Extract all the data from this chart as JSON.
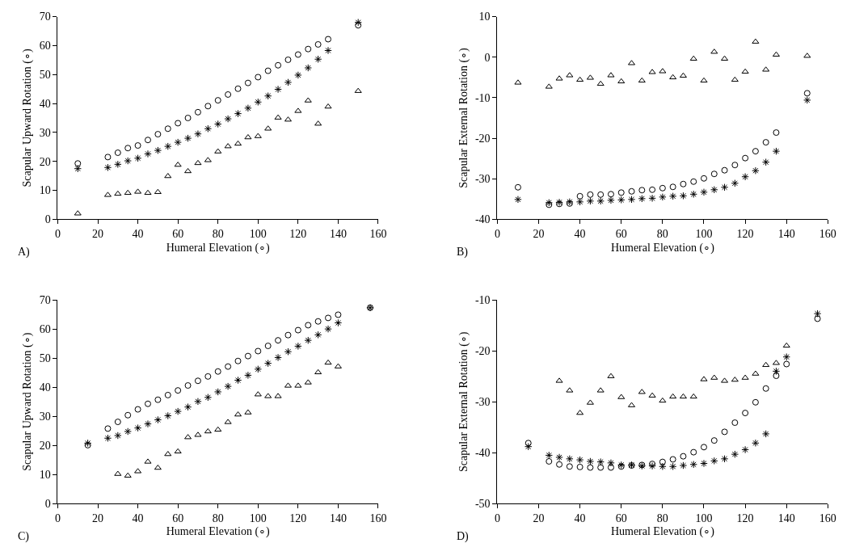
{
  "chart_data": [
    {
      "type": "scatter",
      "xlabel": "Humeral Elevation (∘)",
      "ylabel": "Scapular Upward Rotation (∘)",
      "annotations": [
        "A)"
      ],
      "xlim": [
        0,
        160
      ],
      "xticks": [
        0,
        20,
        40,
        60,
        80,
        100,
        120,
        140,
        160
      ],
      "ylim": [
        0,
        70
      ],
      "yticks": [
        0,
        10,
        20,
        30,
        40,
        50,
        60,
        70
      ],
      "x": [
        10,
        25,
        30,
        35,
        40,
        45,
        50,
        55,
        60,
        65,
        70,
        75,
        80,
        85,
        90,
        95,
        100,
        105,
        110,
        115,
        120,
        125,
        130,
        135,
        150
      ],
      "series": [
        {
          "color": "#000000",
          "marker": "circle",
          "values": [
            19.3,
            21.5,
            23,
            24.6,
            25.5,
            27.4,
            29.4,
            31.3,
            33.2,
            35,
            37,
            39.1,
            41.1,
            43.1,
            45.1,
            47.1,
            49.1,
            51.3,
            53.2,
            55.1,
            56.9,
            58.8,
            60.4,
            62.2,
            67
          ]
        },
        {
          "color": "#000000",
          "marker": "cross",
          "values": [
            17.5,
            17.9,
            19,
            20.2,
            21.1,
            22.6,
            23.8,
            25.2,
            26.6,
            28,
            29.5,
            31.3,
            32.9,
            34.7,
            36.5,
            38.4,
            40.5,
            42.6,
            44.9,
            47.3,
            49.8,
            52.3,
            55.3,
            58.3,
            68
          ]
        },
        {
          "color": "#000000",
          "marker": "triangle",
          "values": [
            2,
            8.4,
            8.8,
            9.1,
            9.5,
            9.1,
            9.4,
            14.9,
            18.8,
            16.6,
            19.4,
            20.4,
            23.4,
            25.2,
            26.1,
            28.3,
            28.7,
            31.3,
            35.1,
            34.4,
            37.4,
            41,
            33,
            38.9,
            44.3
          ]
        }
      ]
    },
    {
      "type": "scatter",
      "xlabel": "Humeral Elevation (∘)",
      "ylabel": "Scapular External Rotation (∘)",
      "annotations": [
        "B)"
      ],
      "xlim": [
        0,
        160
      ],
      "xticks": [
        0,
        20,
        40,
        60,
        80,
        100,
        120,
        140,
        160
      ],
      "ylim": [
        -40,
        10
      ],
      "yticks": [
        -40,
        -30,
        -20,
        -10,
        0,
        10
      ],
      "x": [
        10,
        25,
        30,
        35,
        40,
        45,
        50,
        55,
        60,
        65,
        70,
        75,
        80,
        85,
        90,
        95,
        100,
        105,
        110,
        115,
        120,
        125,
        130,
        135,
        150
      ],
      "series": [
        {
          "color": "#000000",
          "marker": "triangle",
          "values": [
            -6.3,
            -7.3,
            -5.3,
            -4.5,
            -5.6,
            -5.1,
            -6.6,
            -4.5,
            -6,
            -1.5,
            -5.8,
            -3.7,
            -3.5,
            -5,
            -4.6,
            -0.4,
            -5.8,
            1.3,
            -0.4,
            -5.6,
            -3.6,
            3.8,
            -3.1,
            0.6,
            0.3
          ]
        },
        {
          "color": "#000000",
          "marker": "circle",
          "values": [
            -32.1,
            -36.4,
            -36.2,
            -36.1,
            -34.3,
            -33.9,
            -33.9,
            -33.8,
            -33.4,
            -33.1,
            -32.8,
            -32.7,
            -32.3,
            -32,
            -31.3,
            -30.7,
            -29.9,
            -28.8,
            -27.9,
            -26.6,
            -24.9,
            -23.2,
            -21,
            -18.6,
            -8.9
          ]
        },
        {
          "color": "#000000",
          "marker": "cross",
          "values": [
            -35.1,
            -35.9,
            -35.8,
            -35.7,
            -35.7,
            -35.5,
            -35.5,
            -35.3,
            -35.2,
            -35.1,
            -34.9,
            -34.8,
            -34.5,
            -34.3,
            -34.2,
            -33.8,
            -33.3,
            -32.7,
            -32.1,
            -31.1,
            -29.5,
            -28,
            -25.9,
            -23.2,
            -10.6
          ]
        }
      ]
    },
    {
      "type": "scatter",
      "xlabel": "Humeral Elevation (∘)",
      "ylabel": "Scapular Upward Rotation (∘)",
      "annotations": [
        "C)"
      ],
      "xlim": [
        0,
        160
      ],
      "xticks": [
        0,
        20,
        40,
        60,
        80,
        100,
        120,
        140,
        160
      ],
      "ylim": [
        0,
        70
      ],
      "yticks": [
        0,
        10,
        20,
        30,
        40,
        50,
        60,
        70
      ],
      "x": [
        15,
        25,
        30,
        35,
        40,
        45,
        50,
        55,
        60,
        65,
        70,
        75,
        80,
        85,
        90,
        95,
        100,
        105,
        110,
        115,
        120,
        125,
        130,
        135,
        140,
        156
      ],
      "series": [
        {
          "color": "#000000",
          "marker": "circle",
          "values": [
            20.1,
            25.8,
            28.1,
            30.4,
            32.4,
            34.3,
            35.7,
            37.3,
            38.9,
            40.6,
            42.2,
            43.7,
            45.4,
            47.1,
            49,
            50.7,
            52.4,
            54.2,
            56.1,
            57.9,
            59.6,
            61.3,
            62.6,
            63.8,
            64.9,
            67.3
          ]
        },
        {
          "color": "#000000",
          "marker": "cross",
          "values": [
            20.8,
            22.5,
            23.4,
            24.8,
            26,
            27.4,
            28.8,
            30.2,
            31.7,
            33.2,
            35.1,
            36.5,
            38.4,
            40.3,
            42.4,
            44.1,
            46.2,
            48.2,
            50.2,
            52.2,
            54.1,
            56.1,
            58,
            60,
            62.1,
            67.3
          ]
        },
        {
          "color": "#000000",
          "marker": "triangle",
          "x": [
            30,
            35,
            40,
            45,
            50,
            55,
            60,
            65,
            70,
            75,
            80,
            85,
            90,
            95,
            100,
            105,
            110,
            115,
            120,
            125,
            130,
            135,
            140
          ],
          "values": [
            10.2,
            9.6,
            11.1,
            14.4,
            12.3,
            17,
            17.9,
            22.8,
            23.6,
            24.8,
            25.4,
            28,
            30.6,
            31.3,
            37.5,
            36.9,
            36.9,
            40.5,
            40.5,
            41.6,
            45.1,
            48.4,
            47.1
          ]
        }
      ]
    },
    {
      "type": "scatter",
      "xlabel": "Humeral Elevation (∘)",
      "ylabel": "Scapular External Rotation (∘)",
      "annotations": [
        "D)"
      ],
      "xlim": [
        0,
        160
      ],
      "xticks": [
        0,
        20,
        40,
        60,
        80,
        100,
        120,
        140,
        160
      ],
      "ylim": [
        -50,
        -10
      ],
      "yticks": [
        -50,
        -40,
        -30,
        -20,
        -10
      ],
      "x": [
        15,
        25,
        30,
        35,
        40,
        45,
        50,
        55,
        60,
        65,
        70,
        75,
        80,
        85,
        90,
        95,
        100,
        105,
        110,
        115,
        120,
        125,
        130,
        135,
        140,
        155
      ],
      "series": [
        {
          "color": "#000000",
          "marker": "triangle",
          "x": [
            30,
            35,
            40,
            45,
            50,
            55,
            60,
            65,
            70,
            75,
            80,
            85,
            90,
            95,
            100,
            105,
            110,
            115,
            120,
            125,
            130,
            135,
            140
          ],
          "values": [
            -25.9,
            -27.8,
            -32.2,
            -30.2,
            -27.8,
            -25,
            -29.1,
            -30.7,
            -28.1,
            -28.8,
            -29.8,
            -29,
            -29,
            -29,
            -25.6,
            -25.3,
            -25.9,
            -25.7,
            -25.3,
            -24.5,
            -22.8,
            -22.4,
            -19
          ]
        },
        {
          "color": "#000000",
          "marker": "circle",
          "values": [
            -38.1,
            -41.7,
            -42.3,
            -42.7,
            -42.8,
            -42.9,
            -42.9,
            -42.9,
            -42.7,
            -42.5,
            -42.4,
            -42.2,
            -41.8,
            -41.3,
            -40.7,
            -39.9,
            -38.9,
            -37.6,
            -35.9,
            -34.1,
            -32.2,
            -30.1,
            -27.4,
            -24.9,
            -22.6,
            -13.7
          ]
        },
        {
          "color": "#000000",
          "marker": "cross",
          "values": [
            -38.8,
            -40.5,
            -40.9,
            -41.2,
            -41.4,
            -41.7,
            -41.8,
            -42,
            -42.4,
            -42.4,
            -42.6,
            -42.6,
            -42.7,
            -42.7,
            -42.5,
            -42.3,
            -42.1,
            -41.6,
            -41.2,
            -40.3,
            -39.4,
            -38.1,
            -36.3,
            -24,
            -21.2,
            -12.7
          ]
        }
      ]
    }
  ]
}
